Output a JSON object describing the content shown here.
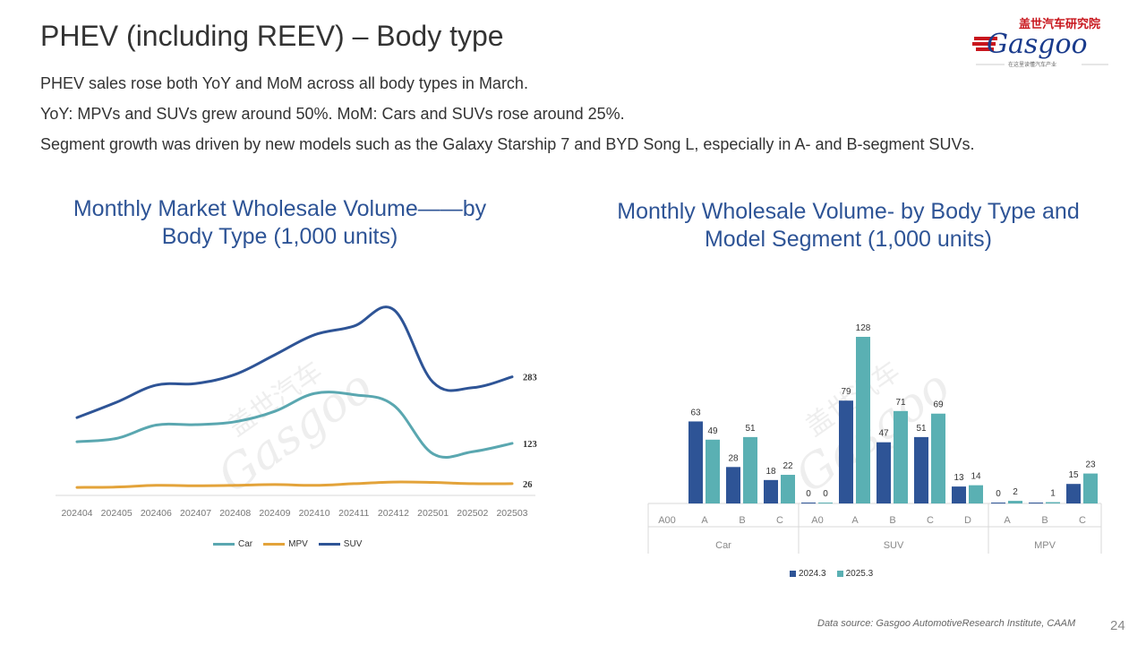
{
  "page": {
    "title": "PHEV (including REEV) – Body type",
    "bullets": [
      "PHEV sales rose both YoY and MoM across all body types in March.",
      "YoY: MPVs and SUVs grew around 50%. MoM: Cars and SUVs rose around 25%.",
      "Segment growth was driven by new models such as the Galaxy Starship 7 and BYD Song L, especially in A- and B-segment SUVs."
    ],
    "source": "Data source: Gasgoo AutomotiveResearch Institute, CAAM",
    "page_number": "24"
  },
  "logo": {
    "cn_text": "盖世汽车研究院",
    "brand": "Gasgoo",
    "tagline": "在这里读懂汽车产业",
    "colors": {
      "red": "#c8161d",
      "blue": "#1a3b8c"
    }
  },
  "chart_data": [
    {
      "type": "line",
      "title": "Monthly Market Wholesale Volume——by Body Type (1,000 units)",
      "title_lines": [
        "Monthly Market Wholesale Volume——by",
        "Body Type (1,000 units)"
      ],
      "categories": [
        "202404",
        "202405",
        "202406",
        "202407",
        "202408",
        "202409",
        "202410",
        "202411",
        "202412",
        "202501",
        "202502",
        "202503"
      ],
      "series": [
        {
          "name": "Car",
          "color": "#5aa7b0",
          "values": [
            127,
            135,
            167,
            168,
            175,
            200,
            243,
            240,
            215,
            98,
            103,
            123
          ]
        },
        {
          "name": "MPV",
          "color": "#e3a33a",
          "values": [
            17,
            18,
            22,
            21,
            22,
            24,
            22,
            26,
            30,
            29,
            26,
            26
          ]
        },
        {
          "name": "SUV",
          "color": "#2e5496",
          "values": [
            185,
            222,
            263,
            267,
            289,
            336,
            384,
            405,
            445,
            270,
            257,
            283
          ]
        }
      ],
      "end_labels": [
        "123",
        "26",
        "283"
      ],
      "ylim": [
        0,
        500
      ]
    },
    {
      "type": "bar",
      "title": "Monthly Wholesale Volume- by Body Type and Model Segment (1,000 units)",
      "title_lines": [
        "Monthly Wholesale Volume- by Body Type and",
        "Model Segment (1,000 units)"
      ],
      "groups": [
        {
          "name": "Car",
          "categories": [
            "A00",
            "A",
            "B",
            "C"
          ]
        },
        {
          "name": "SUV",
          "categories": [
            "A0",
            "A",
            "B",
            "C",
            "D"
          ]
        },
        {
          "name": "MPV",
          "categories": [
            "A",
            "B",
            "C"
          ]
        }
      ],
      "series": [
        {
          "name": "2024.3",
          "color": "#2e5496",
          "values": [
            null,
            63,
            28,
            18,
            0,
            79,
            47,
            51,
            13,
            0,
            0,
            15
          ],
          "labels": [
            "",
            "63",
            "28",
            "18",
            "0",
            "79",
            "47",
            "51",
            "13",
            "0",
            "",
            "15"
          ]
        },
        {
          "name": "2025.3",
          "color": "#5ab0b3",
          "values": [
            null,
            49,
            51,
            22,
            0,
            128,
            71,
            69,
            14,
            2,
            1,
            23
          ],
          "labels": [
            "",
            "49",
            "51",
            "22",
            "0",
            "128",
            "71",
            "69",
            "14",
            "2",
            "1",
            "23"
          ]
        }
      ],
      "ylim": [
        0,
        140
      ]
    }
  ],
  "watermark": {
    "cn": "盖世汽车",
    "en": "Gasgoo"
  }
}
